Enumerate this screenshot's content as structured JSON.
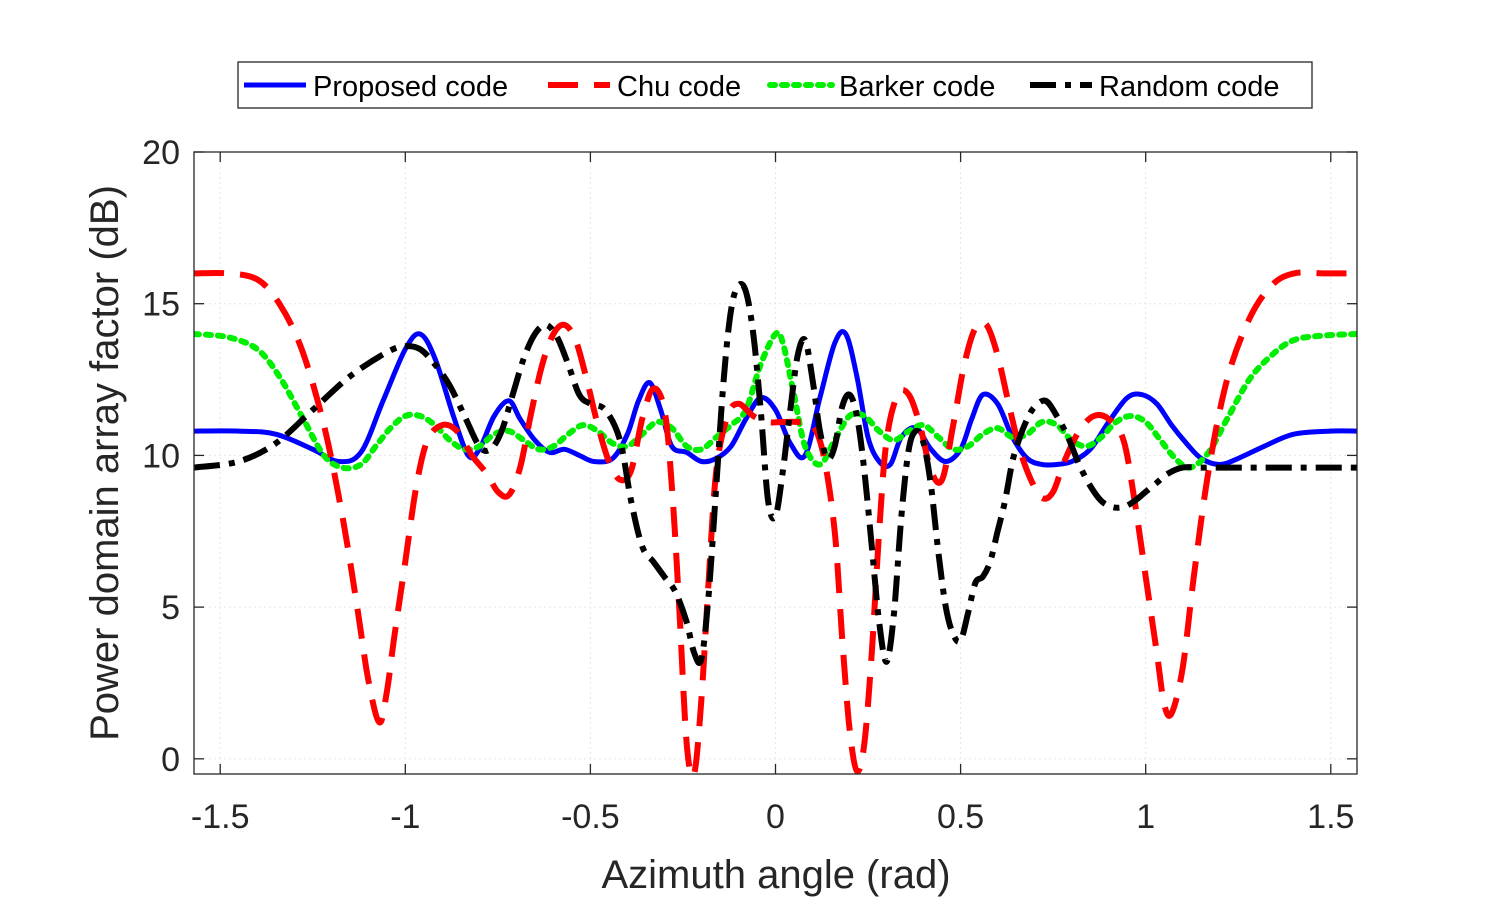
{
  "chart_data": {
    "type": "line",
    "xlabel": "Azimuth angle (rad)",
    "ylabel": "Power domain array factor (dB)",
    "xlim": [
      -1.5708,
      1.5708
    ],
    "ylim": [
      -0.5,
      20
    ],
    "xticks": [
      -1.5,
      -1,
      -0.5,
      0,
      0.5,
      1,
      1.5
    ],
    "xtick_labels": [
      "-1.5",
      "-1",
      "-0.5",
      "0",
      "0.5",
      "1",
      "1.5"
    ],
    "yticks": [
      0,
      5,
      10,
      15,
      20
    ],
    "ytick_labels": [
      "0",
      "5",
      "10",
      "15",
      "20"
    ],
    "grid": true,
    "legend_position": "top",
    "series": [
      {
        "name": "Proposed code",
        "color": "#0000ff",
        "style": "solid",
        "x": [
          -1.5708,
          -1.45,
          -1.35,
          -1.25,
          -1.18,
          -1.12,
          -1.06,
          -1.0,
          -0.96,
          -0.92,
          -0.87,
          -0.83,
          -0.8,
          -0.76,
          -0.72,
          -0.69,
          -0.65,
          -0.61,
          -0.57,
          -0.53,
          -0.49,
          -0.44,
          -0.4,
          -0.37,
          -0.34,
          -0.31,
          -0.28,
          -0.24,
          -0.2,
          -0.16,
          -0.12,
          -0.08,
          -0.04,
          0.0,
          0.04,
          0.08,
          0.12,
          0.16,
          0.19,
          0.22,
          0.25,
          0.28,
          0.31,
          0.34,
          0.38,
          0.42,
          0.46,
          0.5,
          0.53,
          0.56,
          0.6,
          0.64,
          0.68,
          0.72,
          0.76,
          0.8,
          0.85,
          0.9,
          0.95,
          0.99,
          1.03,
          1.07,
          1.11,
          1.15,
          1.2,
          1.25,
          1.32,
          1.4,
          1.5,
          1.5708
        ],
        "y": [
          10.8,
          10.8,
          10.7,
          10.2,
          9.8,
          10.1,
          11.8,
          13.5,
          14.0,
          13.2,
          11.3,
          10.0,
          10.2,
          11.3,
          11.8,
          11.2,
          10.5,
          10.1,
          10.2,
          10.0,
          9.8,
          9.9,
          10.7,
          11.8,
          12.4,
          11.5,
          10.3,
          10.1,
          9.8,
          9.9,
          10.3,
          11.2,
          11.9,
          11.5,
          10.4,
          10.0,
          11.9,
          13.7,
          14.0,
          12.6,
          10.6,
          9.8,
          9.7,
          10.6,
          10.9,
          10.2,
          9.8,
          10.2,
          11.2,
          12.0,
          11.7,
          10.6,
          9.9,
          9.7,
          9.7,
          9.8,
          10.2,
          11.1,
          11.9,
          12.0,
          11.7,
          11.0,
          10.4,
          9.9,
          9.7,
          9.9,
          10.3,
          10.7,
          10.8,
          10.8
        ]
      },
      {
        "name": "Chu code",
        "color": "#ff0000",
        "style": "dashed",
        "x": [
          -1.5708,
          -1.48,
          -1.4,
          -1.34,
          -1.28,
          -1.22,
          -1.17,
          -1.13,
          -1.1,
          -1.07,
          -1.05,
          -1.03,
          -1.0,
          -0.97,
          -0.94,
          -0.9,
          -0.86,
          -0.82,
          -0.78,
          -0.75,
          -0.72,
          -0.69,
          -0.66,
          -0.63,
          -0.6,
          -0.57,
          -0.54,
          -0.51,
          -0.48,
          -0.45,
          -0.42,
          -0.39,
          -0.36,
          -0.33,
          -0.3,
          -0.28,
          -0.26,
          -0.24,
          -0.22,
          -0.2,
          -0.18,
          -0.16,
          -0.13,
          -0.1,
          -0.06,
          -0.02,
          0.02,
          0.06,
          0.1,
          0.13,
          0.16,
          0.18,
          0.2,
          0.22,
          0.24,
          0.26,
          0.28,
          0.3,
          0.33,
          0.36,
          0.39,
          0.42,
          0.45,
          0.48,
          0.51,
          0.54,
          0.57,
          0.6,
          0.63,
          0.66,
          0.69,
          0.72,
          0.75,
          0.78,
          0.82,
          0.86,
          0.9,
          0.94,
          0.97,
          1.0,
          1.03,
          1.05,
          1.07,
          1.1,
          1.13,
          1.17,
          1.22,
          1.28,
          1.34,
          1.4,
          1.48,
          1.5708
        ],
        "y": [
          16.0,
          16.0,
          15.8,
          15.0,
          13.5,
          11.0,
          8.0,
          5.0,
          2.6,
          1.2,
          2.2,
          4.0,
          6.5,
          9.0,
          10.5,
          11.0,
          10.8,
          10.0,
          9.4,
          8.8,
          8.7,
          9.6,
          11.4,
          13.0,
          14.0,
          14.3,
          13.8,
          12.5,
          11.0,
          9.8,
          9.2,
          9.5,
          11.2,
          12.2,
          11.5,
          9.0,
          5.0,
          0.5,
          -0.5,
          2.0,
          6.0,
          9.5,
          11.3,
          11.7,
          11.3,
          11.1,
          11.1,
          11.1,
          11.0,
          10.0,
          7.5,
          4.0,
          1.0,
          -0.4,
          0.5,
          3.5,
          7.5,
          10.5,
          12.0,
          12.0,
          11.0,
          9.5,
          9.2,
          11.0,
          13.0,
          14.2,
          14.3,
          13.3,
          11.7,
          10.2,
          9.2,
          8.6,
          8.8,
          9.8,
          10.8,
          11.3,
          11.2,
          10.5,
          8.5,
          6.0,
          3.5,
          1.8,
          1.5,
          3.0,
          6.0,
          9.5,
          12.5,
          14.5,
          15.6,
          16.0,
          16.0,
          16.0
        ]
      },
      {
        "name": "Barker code",
        "color": "#00ee00",
        "style": "dotted",
        "x": [
          -1.5708,
          -1.48,
          -1.4,
          -1.34,
          -1.28,
          -1.22,
          -1.17,
          -1.12,
          -1.08,
          -1.04,
          -1.0,
          -0.96,
          -0.92,
          -0.88,
          -0.84,
          -0.8,
          -0.76,
          -0.72,
          -0.68,
          -0.64,
          -0.6,
          -0.56,
          -0.52,
          -0.48,
          -0.44,
          -0.4,
          -0.36,
          -0.32,
          -0.28,
          -0.24,
          -0.2,
          -0.16,
          -0.12,
          -0.08,
          -0.04,
          0.0,
          0.02,
          0.05,
          0.08,
          0.12,
          0.16,
          0.2,
          0.24,
          0.28,
          0.32,
          0.36,
          0.4,
          0.44,
          0.48,
          0.52,
          0.56,
          0.6,
          0.64,
          0.68,
          0.72,
          0.76,
          0.8,
          0.84,
          0.88,
          0.92,
          0.96,
          1.0,
          1.04,
          1.08,
          1.12,
          1.17,
          1.22,
          1.28,
          1.34,
          1.4,
          1.48,
          1.5708
        ],
        "y": [
          14.0,
          13.9,
          13.5,
          12.6,
          11.3,
          10.0,
          9.6,
          9.7,
          10.3,
          10.9,
          11.3,
          11.3,
          11.0,
          10.5,
          10.2,
          10.3,
          10.7,
          10.8,
          10.5,
          10.2,
          10.3,
          10.7,
          11.0,
          10.8,
          10.4,
          10.3,
          10.7,
          11.1,
          10.9,
          10.3,
          10.2,
          10.6,
          11.0,
          11.5,
          13.0,
          14.0,
          13.7,
          12.0,
          10.3,
          9.7,
          10.5,
          11.3,
          11.3,
          10.8,
          10.5,
          10.8,
          11.0,
          10.6,
          10.2,
          10.3,
          10.7,
          10.9,
          10.6,
          10.7,
          11.1,
          11.0,
          10.5,
          10.3,
          10.6,
          11.1,
          11.3,
          11.1,
          10.5,
          9.9,
          9.6,
          10.1,
          11.2,
          12.5,
          13.3,
          13.8,
          13.95,
          14.0
        ]
      },
      {
        "name": "Random code",
        "color": "#000000",
        "style": "dashdot",
        "x": [
          -1.5708,
          -1.45,
          -1.35,
          -1.25,
          -1.15,
          -1.05,
          -1.0,
          -0.96,
          -0.92,
          -0.88,
          -0.84,
          -0.8,
          -0.77,
          -0.74,
          -0.71,
          -0.68,
          -0.65,
          -0.62,
          -0.59,
          -0.56,
          -0.53,
          -0.5,
          -0.46,
          -0.42,
          -0.39,
          -0.36,
          -0.33,
          -0.3,
          -0.27,
          -0.24,
          -0.22,
          -0.2,
          -0.18,
          -0.16,
          -0.14,
          -0.12,
          -0.1,
          -0.08,
          -0.06,
          -0.04,
          -0.02,
          0.0,
          0.02,
          0.04,
          0.06,
          0.08,
          0.1,
          0.12,
          0.14,
          0.16,
          0.18,
          0.2,
          0.22,
          0.24,
          0.26,
          0.28,
          0.3,
          0.32,
          0.34,
          0.36,
          0.38,
          0.4,
          0.42,
          0.44,
          0.46,
          0.48,
          0.5,
          0.52,
          0.54,
          0.56,
          0.58,
          0.6,
          0.62,
          0.64,
          0.66,
          0.68,
          0.7,
          0.73,
          0.76,
          0.79,
          0.82,
          0.85,
          0.88,
          0.91,
          0.94,
          0.97,
          1.0,
          1.03,
          1.06,
          1.1,
          1.15,
          1.2,
          1.25,
          1.3,
          1.38,
          1.46,
          1.5708
        ],
        "y": [
          9.6,
          9.8,
          10.4,
          11.5,
          12.6,
          13.4,
          13.6,
          13.5,
          13.0,
          12.3,
          11.3,
          10.3,
          10.2,
          10.8,
          12.0,
          13.2,
          14.0,
          14.3,
          13.9,
          13.0,
          12.0,
          11.7,
          11.5,
          10.5,
          8.5,
          7.0,
          6.5,
          6.0,
          5.5,
          4.5,
          3.5,
          3.3,
          5.5,
          9.0,
          12.5,
          14.8,
          15.6,
          15.4,
          14.0,
          11.5,
          8.5,
          8.0,
          9.5,
          11.5,
          13.3,
          13.8,
          12.5,
          10.8,
          9.9,
          10.3,
          11.6,
          12.0,
          11.3,
          9.5,
          7.0,
          4.5,
          3.2,
          4.8,
          8.0,
          10.2,
          10.8,
          10.4,
          9.0,
          6.8,
          5.0,
          4.1,
          3.9,
          4.8,
          5.8,
          6.0,
          6.5,
          7.5,
          8.5,
          9.8,
          10.6,
          11.2,
          11.6,
          11.8,
          11.3,
          10.6,
          9.7,
          9.0,
          8.5,
          8.3,
          8.3,
          8.5,
          8.8,
          9.1,
          9.4,
          9.6,
          9.6,
          9.6,
          9.6,
          9.6,
          9.6,
          9.6,
          9.6
        ]
      }
    ]
  }
}
